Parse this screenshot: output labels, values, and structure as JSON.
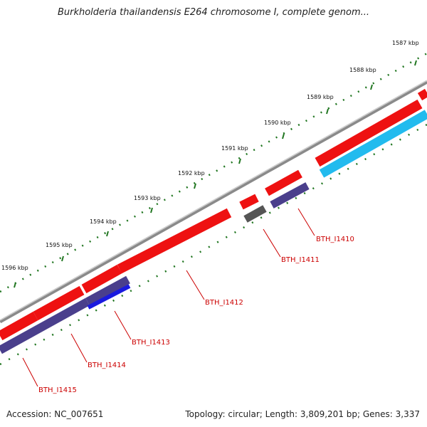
{
  "title": "Burkholderia thailandensis E264 chromosome I, complete genom...",
  "footer": {
    "accession": "Accession: NC_007651",
    "stats": "Topology: circular; Length: 3,809,201 bp; Genes: 3,337"
  },
  "colors": {
    "backbone": "#8a8a8a",
    "forward_gene": "#ee1111",
    "reverse_gene": "#4a3f8c",
    "reverse_gene_alt": "#1a1adf",
    "reverse_gene_cyan": "#22bbee",
    "reverse_gene_gray": "#555555",
    "tick": "#227722",
    "label": "#cc0000"
  },
  "kbp_labels": [
    "1587 kbp",
    "1588 kbp",
    "1589 kbp",
    "1590 kbp",
    "1591 kbp",
    "1592 kbp",
    "1593 kbp",
    "1594 kbp",
    "1595 kbp",
    "1596 kbp"
  ],
  "gene_labels": [
    "BTH_I1410",
    "BTH_I1411",
    "BTH_I1412",
    "BTH_I1413",
    "BTH_I1414",
    "BTH_I1415"
  ]
}
